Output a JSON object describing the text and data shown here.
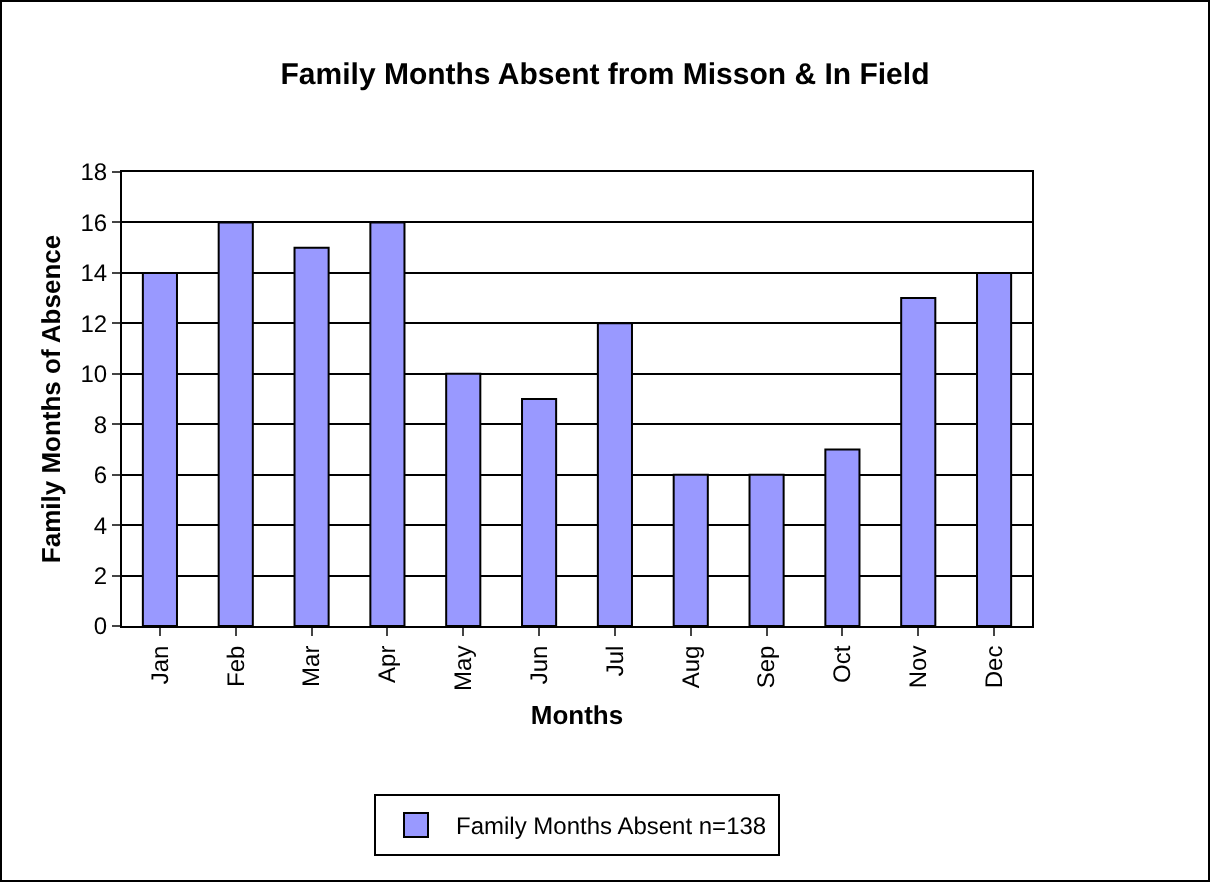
{
  "chart_data": {
    "type": "bar",
    "title": "Family Months Absent from Misson & In Field",
    "xlabel": "Months",
    "ylabel": "Family Months of Absence",
    "categories": [
      "Jan",
      "Feb",
      "Mar",
      "Apr",
      "May",
      "Jun",
      "Jul",
      "Aug",
      "Sep",
      "Oct",
      "Nov",
      "Dec"
    ],
    "series": [
      {
        "name": "Family Months Absent n=138",
        "color": "#9999ff",
        "values": [
          14,
          16,
          15,
          16,
          10,
          9,
          12,
          6,
          6,
          7,
          13,
          14
        ]
      }
    ],
    "ylim": [
      0,
      18
    ],
    "yticks": [
      0,
      2,
      4,
      6,
      8,
      10,
      12,
      14,
      16,
      18
    ],
    "grid": "y",
    "legend": "bottom"
  }
}
